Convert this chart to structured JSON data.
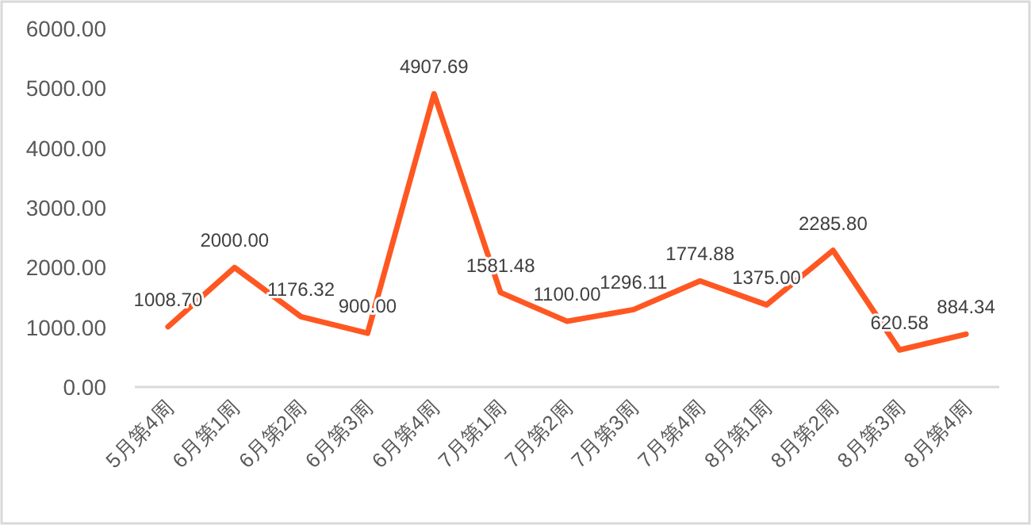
{
  "chart_data": {
    "type": "line",
    "categories": [
      "5月第4周",
      "6月第1周",
      "6月第2周",
      "6月第3周",
      "6月第4周",
      "7月第1周",
      "7月第2周",
      "7月第3周",
      "7月第4周",
      "8月第1周",
      "8月第2周",
      "8月第3周",
      "8月第4周"
    ],
    "series": [
      {
        "color": "#ff5722",
        "values": [
          1008.7,
          2000.0,
          1176.32,
          900.0,
          4907.69,
          1581.48,
          1100.0,
          1296.11,
          1774.88,
          1375.0,
          2285.8,
          620.58,
          884.34
        ]
      }
    ],
    "value_labels": [
      "1008.70",
      "2000.00",
      "1176.32",
      "900.00",
      "4907.69",
      "1581.48",
      "1100.00",
      "1296.11",
      "1774.88",
      "1375.00",
      "2285.80",
      "620.58",
      "884.34"
    ],
    "ylim": [
      0,
      6000
    ],
    "yticks": [
      {
        "value": 0,
        "label": "0.00"
      },
      {
        "value": 1000,
        "label": "1000.00"
      },
      {
        "value": 2000,
        "label": "2000.00"
      },
      {
        "value": 3000,
        "label": "3000.00"
      },
      {
        "value": 4000,
        "label": "4000.00"
      },
      {
        "value": 5000,
        "label": "5000.00"
      },
      {
        "value": 6000,
        "label": "6000.00"
      }
    ],
    "marker": "none",
    "line_style": "solid"
  }
}
